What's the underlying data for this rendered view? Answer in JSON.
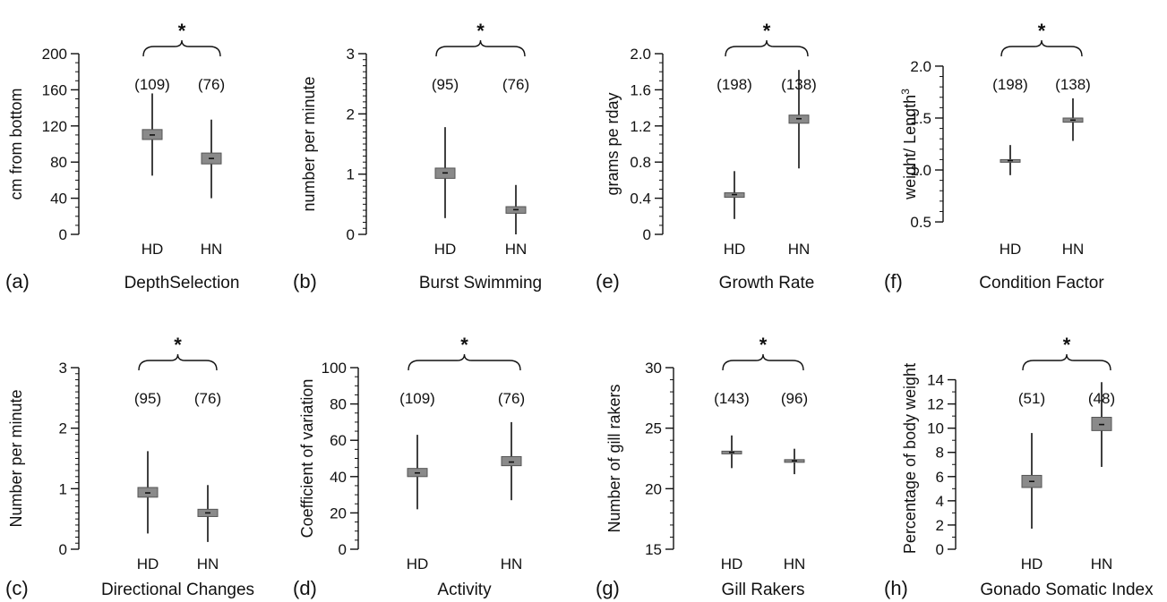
{
  "chart_data": [
    {
      "type": "box",
      "panel": "(a)",
      "title": "DepthSelection",
      "ylabel": "cm from bottom",
      "ylim": [
        0,
        200
      ],
      "yticks": [
        0,
        40,
        80,
        120,
        160,
        200
      ],
      "minor_step": 10,
      "categories": [
        "HD",
        "HN"
      ],
      "n_labels": [
        "(109)",
        "(76)"
      ],
      "significance": "*",
      "boxes": [
        {
          "median": 110,
          "q1": 105,
          "q3": 116,
          "min": 65,
          "max": 156
        },
        {
          "median": 84,
          "q1": 78,
          "q3": 90,
          "min": 40,
          "max": 127
        }
      ]
    },
    {
      "type": "box",
      "panel": "(b)",
      "title": "Burst Swimming",
      "ylabel": "number per minute",
      "ylim": [
        0,
        3
      ],
      "yticks": [
        0,
        1,
        2,
        3
      ],
      "minor_step": 0.1,
      "categories": [
        "HD",
        "HN"
      ],
      "n_labels": [
        "(95)",
        "(76)"
      ],
      "significance": "*",
      "boxes": [
        {
          "median": 1.02,
          "q1": 0.93,
          "q3": 1.1,
          "min": 0.27,
          "max": 1.78
        },
        {
          "median": 0.41,
          "q1": 0.35,
          "q3": 0.46,
          "min": 0.0,
          "max": 0.82
        }
      ]
    },
    {
      "type": "box",
      "panel": "(e)",
      "title": "Growth Rate",
      "ylabel": "grams pe rday",
      "ylim": [
        0,
        2.0
      ],
      "yticks": [
        0,
        0.4,
        0.8,
        1.2,
        1.6,
        2.0
      ],
      "ytick_labels": [
        "0",
        "0.4",
        "0.8",
        "1.2",
        "1.6",
        "2.0"
      ],
      "minor_step": 0.1,
      "categories": [
        "HD",
        "HN"
      ],
      "n_labels": [
        "(198)",
        "(138)"
      ],
      "significance": "*",
      "boxes": [
        {
          "median": 0.44,
          "q1": 0.41,
          "q3": 0.46,
          "min": 0.17,
          "max": 0.7
        },
        {
          "median": 1.28,
          "q1": 1.23,
          "q3": 1.32,
          "min": 0.73,
          "max": 1.82
        }
      ]
    },
    {
      "type": "box",
      "panel": "(f)",
      "title": "Condition Factor",
      "ylabel": "weight/ Length",
      "ylabel_sup": "3",
      "ylim": [
        0.38,
        2.12
      ],
      "yticks": [
        0.5,
        1.0,
        1.5,
        2.0
      ],
      "ytick_labels": [
        "0.5",
        "1.0",
        "1.5",
        "2.0"
      ],
      "minor_step": 0.1,
      "categories": [
        "HD",
        "HN"
      ],
      "n_labels": [
        "(198)",
        "(138)"
      ],
      "significance": "*",
      "boxes": [
        {
          "median": 1.09,
          "q1": 1.08,
          "q3": 1.1,
          "min": 0.95,
          "max": 1.24
        },
        {
          "median": 1.48,
          "q1": 1.46,
          "q3": 1.5,
          "min": 1.28,
          "max": 1.69
        }
      ]
    },
    {
      "type": "box",
      "panel": "(c)",
      "title": "Directional Changes",
      "ylabel": "Number per minute",
      "ylim": [
        0,
        3
      ],
      "yticks": [
        0,
        1,
        2,
        3
      ],
      "minor_step": 0.1,
      "categories": [
        "HD",
        "HN"
      ],
      "n_labels": [
        "(95)",
        "(76)"
      ],
      "significance": "*",
      "boxes": [
        {
          "median": 0.93,
          "q1": 0.86,
          "q3": 1.02,
          "min": 0.26,
          "max": 1.62
        },
        {
          "median": 0.6,
          "q1": 0.54,
          "q3": 0.66,
          "min": 0.12,
          "max": 1.06
        }
      ]
    },
    {
      "type": "box",
      "panel": "(d)",
      "title": "Activity",
      "ylabel": "Coefficient of variation",
      "ylim": [
        0,
        100
      ],
      "yticks": [
        0,
        20,
        40,
        60,
        80,
        100
      ],
      "minor_step": 5,
      "categories": [
        "HD",
        "HN"
      ],
      "n_labels": [
        "(109)",
        "(76)"
      ],
      "significance": "*",
      "boxes": [
        {
          "median": 42,
          "q1": 40,
          "q3": 44.5,
          "min": 22,
          "max": 63
        },
        {
          "median": 48,
          "q1": 46,
          "q3": 51,
          "min": 27,
          "max": 70
        }
      ]
    },
    {
      "type": "box",
      "panel": "(g)",
      "title": "Gill Rakers",
      "ylabel": "Number of gill rakers",
      "ylim": [
        15,
        30
      ],
      "yticks": [
        15,
        20,
        25,
        30
      ],
      "minor_step": 1,
      "categories": [
        "HD",
        "HN"
      ],
      "n_labels": [
        "(143)",
        "(96)"
      ],
      "significance": "*",
      "boxes": [
        {
          "median": 23.0,
          "q1": 22.9,
          "q3": 23.1,
          "min": 21.7,
          "max": 24.4
        },
        {
          "median": 22.3,
          "q1": 22.2,
          "q3": 22.4,
          "min": 21.2,
          "max": 23.3
        }
      ]
    },
    {
      "type": "box",
      "panel": "(h)",
      "title": "Gonado Somatic Index",
      "ylabel": "Percentage of body weight",
      "ylim": [
        0,
        15
      ],
      "yticks": [
        0,
        2,
        4,
        6,
        8,
        10,
        12,
        14
      ],
      "minor_step": 1,
      "categories": [
        "HD",
        "HN"
      ],
      "n_labels": [
        "(51)",
        "(48)"
      ],
      "significance": "*",
      "boxes": [
        {
          "median": 5.6,
          "q1": 5.1,
          "q3": 6.1,
          "min": 1.7,
          "max": 9.6
        },
        {
          "median": 10.3,
          "q1": 9.8,
          "q3": 10.9,
          "min": 6.8,
          "max": 13.8
        }
      ]
    }
  ],
  "colors": {
    "box_fill": "#8a8a8a",
    "box_stroke": "#555555",
    "ink": "#111111"
  }
}
